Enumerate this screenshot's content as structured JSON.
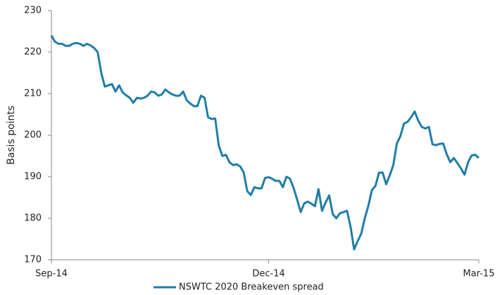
{
  "chart_data": {
    "type": "line",
    "y_label": "Basis points",
    "categories": [
      "Sep-14",
      null,
      null,
      null,
      null,
      null,
      null,
      null,
      null,
      null,
      null,
      null,
      null,
      null,
      null,
      null,
      null,
      null,
      null,
      null,
      null,
      null,
      null,
      null,
      null,
      null,
      null,
      null,
      null,
      null,
      null,
      null,
      null,
      null,
      null,
      null,
      null,
      null,
      null,
      null,
      null,
      null,
      null,
      null,
      null,
      null,
      null,
      null,
      null,
      null,
      null,
      null,
      null,
      null,
      null,
      null,
      null,
      null,
      null,
      null,
      null,
      "Dec-14",
      null,
      null,
      null,
      null,
      null,
      null,
      null,
      null,
      null,
      null,
      null,
      null,
      null,
      null,
      null,
      null,
      null,
      null,
      null,
      null,
      null,
      null,
      null,
      null,
      null,
      null,
      null,
      null,
      null,
      null,
      null,
      null,
      null,
      null,
      null,
      null,
      null,
      null,
      null,
      null,
      null,
      null,
      null,
      null,
      null,
      null,
      null,
      null,
      null,
      null,
      null,
      null,
      null,
      null,
      null,
      null,
      null,
      null,
      "Mar-15"
    ],
    "series": [
      {
        "name": "NSWTC 2020 Breakeven spread",
        "color": "#1f7ea6",
        "values": [
          224,
          222.5,
          222,
          222,
          221.5,
          221.5,
          222,
          222.2,
          222,
          221.5,
          222,
          221.6,
          221,
          220,
          215,
          211.7,
          212,
          212.3,
          210.5,
          212,
          210.3,
          209.6,
          209,
          207.8,
          209,
          208.8,
          209,
          209.5,
          210.5,
          210.3,
          209.5,
          209.8,
          211,
          210.3,
          209.8,
          209.5,
          209.5,
          210.5,
          208.4,
          207.6,
          207,
          207,
          209.5,
          209,
          204.3,
          203.9,
          204,
          197.5,
          195,
          195.3,
          193.5,
          192.8,
          193,
          192.5,
          191,
          186.5,
          185.6,
          187.5,
          187.2,
          187.2,
          189.7,
          189.9,
          189.5,
          189,
          189,
          187.5,
          190,
          189.5,
          187.3,
          184.5,
          181.5,
          183.6,
          184,
          183.5,
          182.9,
          187,
          181.8,
          183.8,
          185.5,
          181,
          180,
          181.2,
          181.5,
          181.8,
          178,
          172.5,
          174.5,
          176.3,
          180,
          183,
          186.8,
          187.8,
          191,
          191,
          188.2,
          190.3,
          192.8,
          198,
          199.8,
          202.8,
          203.2,
          204.3,
          205.7,
          203.5,
          202,
          201.6,
          202,
          197.8,
          197.6,
          197.9,
          198,
          195.4,
          193.5,
          194.5,
          193.3,
          192,
          190.5,
          193.5,
          195.1,
          195.3,
          194.5
        ]
      }
    ],
    "ylim": [
      170,
      230
    ],
    "yticks": [
      170,
      180,
      190,
      200,
      210,
      220,
      230
    ],
    "grid": false,
    "legend": "bottom"
  }
}
